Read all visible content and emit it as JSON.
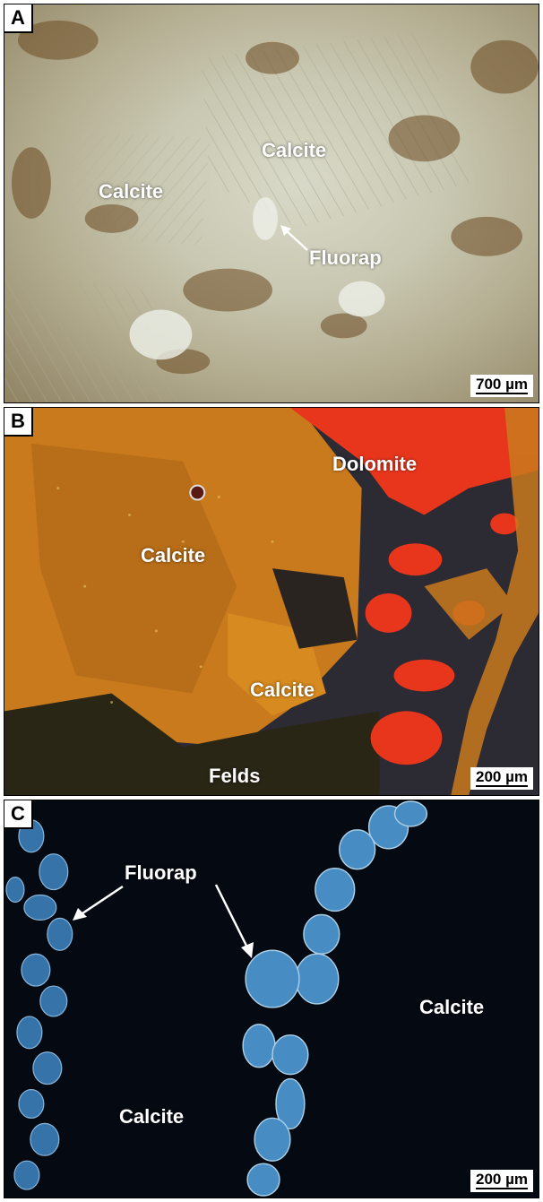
{
  "panels": [
    {
      "letter": "A",
      "labels": {
        "calcite_1": "Calcite",
        "calcite_2": "Calcite",
        "fluorap": "Fluorap"
      },
      "scale_bar": "700 µm",
      "imaging": "transmitted light micrograph, beige/brown tones"
    },
    {
      "letter": "B",
      "labels": {
        "dolomite": "Dolomite",
        "calcite_1": "Calcite",
        "calcite_2": "Calcite",
        "felds": "Felds"
      },
      "scale_bar": "200 µm",
      "imaging": "cathodoluminescence: orange calcite, red dolomite"
    },
    {
      "letter": "C",
      "labels": {
        "fluorap": "Fluorap",
        "calcite_1": "Calcite",
        "calcite_2": "Calcite"
      },
      "scale_bar": "200 µm",
      "imaging": "cathodoluminescence: blue fluorapatite on dark calcite"
    }
  ],
  "colors": {
    "calcite_cl": "#d68a1f",
    "dolomite_cl": "#e8361c",
    "fluorapatite_cl": "#5fb8f0",
    "label_text": "#ffffff"
  }
}
